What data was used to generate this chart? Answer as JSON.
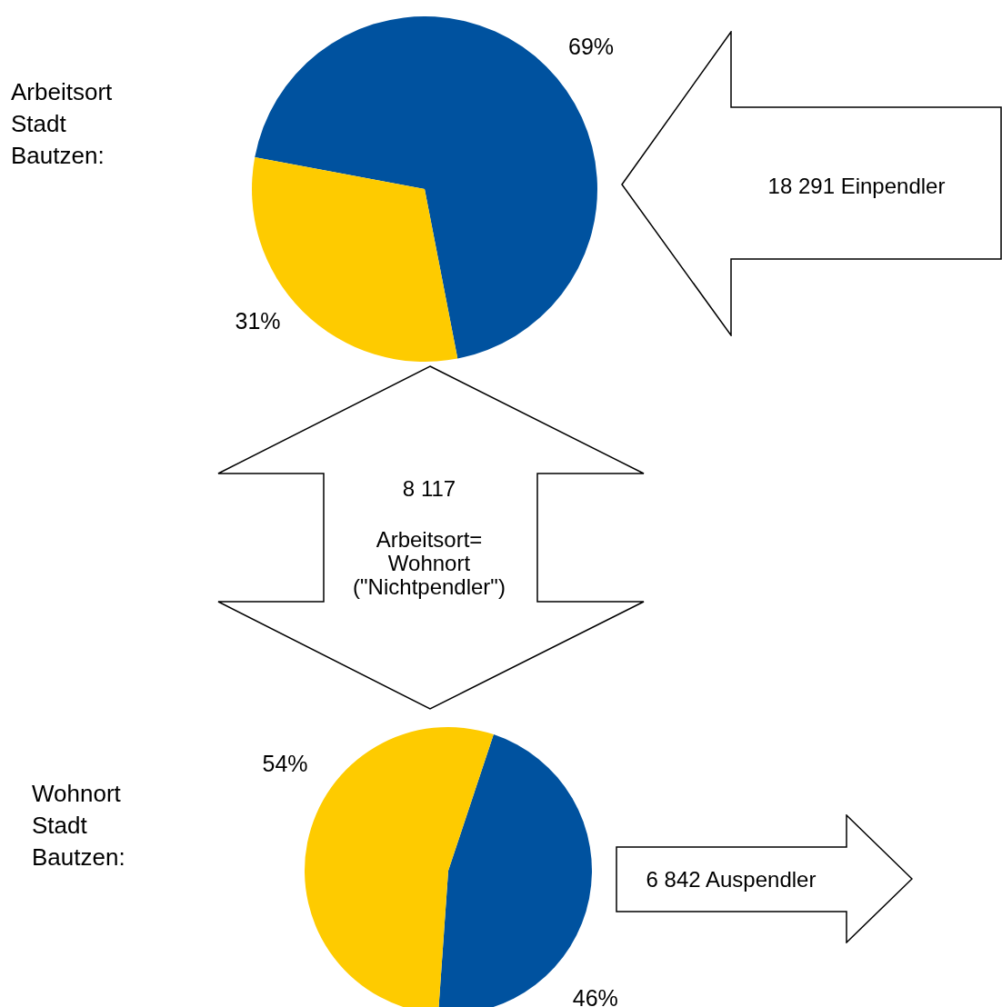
{
  "chart_data": [
    {
      "type": "pie",
      "title": "Arbeitsort Stadt Bautzen:",
      "categories": [
        null,
        null
      ],
      "values": [
        69,
        31
      ],
      "colors": [
        "#00529f",
        "#fecb00"
      ],
      "value_labels": [
        "69%",
        "31%"
      ],
      "annotations": [
        "18 291 Einpendler",
        "8 117",
        "Arbeitsort= Wohnort (\"Nichtpendler\")"
      ]
    },
    {
      "type": "pie",
      "title": "Wohnort Stadt Bautzen:",
      "categories": [
        null,
        null
      ],
      "values": [
        46,
        54
      ],
      "colors": [
        "#00529f",
        "#fecb00"
      ],
      "value_labels": [
        "46%",
        "54%"
      ],
      "annotations": [
        "6 842 Auspendler"
      ]
    }
  ]
}
